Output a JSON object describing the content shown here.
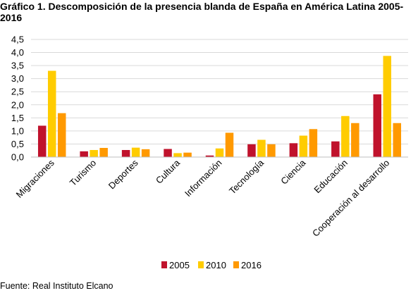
{
  "chart_data": {
    "type": "bar",
    "title": "Gráfico 1. Descomposición de la presencia blanda de España en América Latina 2005-2016",
    "categories": [
      "Migraciones",
      "Turismo",
      "Deportes",
      "Cultura",
      "Información",
      "Tecnología",
      "Ciencia",
      "Educación",
      "Cooperación al desarrollo"
    ],
    "series": [
      {
        "name": "2005",
        "color": "#c0122c",
        "values": [
          1.2,
          0.22,
          0.27,
          0.31,
          0.06,
          0.49,
          0.53,
          0.6,
          2.4
        ]
      },
      {
        "name": "2010",
        "color": "#ffcc00",
        "values": [
          3.3,
          0.27,
          0.36,
          0.15,
          0.33,
          0.66,
          0.82,
          1.57,
          3.87
        ]
      },
      {
        "name": "2016",
        "color": "#ff9900",
        "values": [
          1.68,
          0.35,
          0.3,
          0.17,
          0.93,
          0.49,
          1.07,
          1.3,
          1.3
        ]
      }
    ],
    "ylim": [
      0,
      4.5
    ],
    "yticks": [
      "0,0",
      "0,5",
      "1,0",
      "1,5",
      "2,0",
      "2,5",
      "3,0",
      "3,5",
      "4,0",
      "4,5"
    ],
    "grid": true,
    "legend_position": "bottom"
  },
  "source_text": "Fuente: Real Instituto Elcano"
}
